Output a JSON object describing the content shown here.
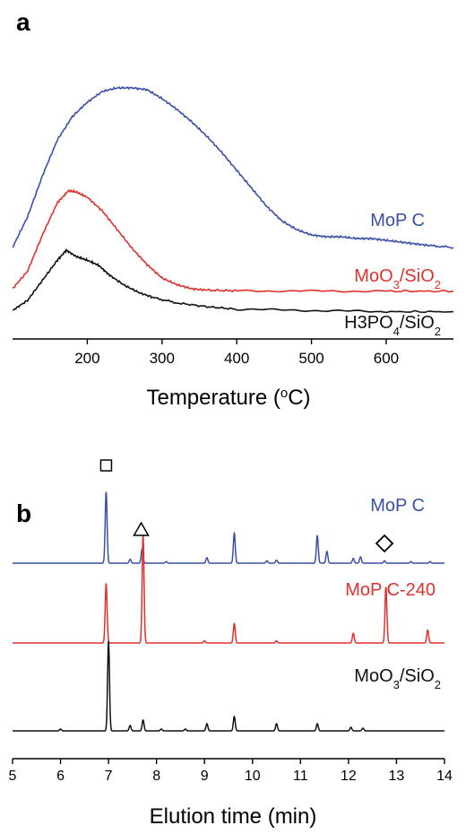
{
  "figure": {
    "panels": [
      {
        "label": "a",
        "xlabel_main": "Temperature (",
        "xlabel_sup": "o",
        "xlabel_end": "C)",
        "marker_symbols": []
      },
      {
        "label": "b",
        "xlabel_main": "Elution time (min)",
        "xlabel_sup": "",
        "xlabel_end": "",
        "marker_symbols": [
          "square",
          "triangle",
          "diamond"
        ]
      }
    ]
  },
  "chart_data": [
    {
      "type": "line",
      "title": "",
      "xlabel": "Temperature (oC)",
      "ylabel": "",
      "xlim": [
        100,
        690
      ],
      "x_ticks": [
        200,
        300,
        400,
        500,
        600
      ],
      "grid": false,
      "y_axis_shown": false,
      "stacked_offsets": true,
      "series": [
        {
          "name": "MoP C",
          "label_main": "MoP C",
          "label_sub": "",
          "label_tail": "",
          "label_sub2": "",
          "color": "#3a4fa8",
          "points": [
            [
              100,
              0.05
            ],
            [
              120,
              0.22
            ],
            [
              140,
              0.45
            ],
            [
              160,
              0.65
            ],
            [
              180,
              0.78
            ],
            [
              200,
              0.86
            ],
            [
              220,
              0.92
            ],
            [
              240,
              0.94
            ],
            [
              260,
              0.94
            ],
            [
              280,
              0.93
            ],
            [
              300,
              0.88
            ],
            [
              320,
              0.82
            ],
            [
              340,
              0.75
            ],
            [
              360,
              0.67
            ],
            [
              380,
              0.58
            ],
            [
              400,
              0.48
            ],
            [
              420,
              0.38
            ],
            [
              440,
              0.28
            ],
            [
              460,
              0.2
            ],
            [
              480,
              0.15
            ],
            [
              500,
              0.12
            ],
            [
              520,
              0.11
            ],
            [
              540,
              0.11
            ],
            [
              560,
              0.1
            ],
            [
              580,
              0.1
            ],
            [
              600,
              0.09
            ],
            [
              620,
              0.08
            ],
            [
              640,
              0.07
            ],
            [
              660,
              0.06
            ],
            [
              690,
              0.05
            ]
          ]
        },
        {
          "name": "MoO3/SiO2",
          "label_main": "MoO",
          "label_sub": "3",
          "label_tail": "/SiO",
          "label_sub2": "2",
          "color": "#e0312f",
          "points": [
            [
              100,
              0.02
            ],
            [
              120,
              0.15
            ],
            [
              140,
              0.42
            ],
            [
              160,
              0.66
            ],
            [
              175,
              0.75
            ],
            [
              185,
              0.74
            ],
            [
              200,
              0.7
            ],
            [
              220,
              0.6
            ],
            [
              240,
              0.46
            ],
            [
              260,
              0.32
            ],
            [
              280,
              0.2
            ],
            [
              300,
              0.1
            ],
            [
              320,
              0.05
            ],
            [
              340,
              0.02
            ],
            [
              360,
              0.01
            ],
            [
              400,
              0.005
            ],
            [
              500,
              0.003
            ],
            [
              600,
              0.002
            ],
            [
              690,
              0.002
            ]
          ]
        },
        {
          "name": "H3PO4/SiO2",
          "label_main": "H3PO",
          "label_sub": "4",
          "label_tail": "/SiO",
          "label_sub2": "2",
          "color": "#111111",
          "points": [
            [
              100,
              0.02
            ],
            [
              120,
              0.1
            ],
            [
              140,
              0.26
            ],
            [
              160,
              0.42
            ],
            [
              172,
              0.5
            ],
            [
              185,
              0.45
            ],
            [
              200,
              0.42
            ],
            [
              215,
              0.38
            ],
            [
              230,
              0.3
            ],
            [
              250,
              0.22
            ],
            [
              270,
              0.16
            ],
            [
              290,
              0.12
            ],
            [
              320,
              0.08
            ],
            [
              360,
              0.05
            ],
            [
              400,
              0.03
            ],
            [
              500,
              0.02
            ],
            [
              600,
              0.01
            ],
            [
              690,
              0.01
            ]
          ]
        }
      ]
    },
    {
      "type": "line",
      "title": "",
      "xlabel": "Elution time (min)",
      "ylabel": "",
      "xlim": [
        5,
        14
      ],
      "x_ticks": [
        5,
        6,
        7,
        8,
        9,
        10,
        11,
        12,
        13,
        14
      ],
      "grid": false,
      "y_axis_shown": false,
      "stacked_offsets": true,
      "series": [
        {
          "name": "MoP C",
          "label_main": "MoP C",
          "label_sub": "",
          "label_tail": "",
          "label_sub2": "",
          "color": "#3a4fa8",
          "peaks": [
            [
              6.95,
              0.9
            ],
            [
              7.45,
              0.05
            ],
            [
              7.7,
              0.18
            ],
            [
              8.2,
              0.02
            ],
            [
              9.05,
              0.07
            ],
            [
              9.62,
              0.38
            ],
            [
              10.3,
              0.03
            ],
            [
              10.5,
              0.04
            ],
            [
              11.35,
              0.35
            ],
            [
              11.55,
              0.15
            ],
            [
              12.1,
              0.06
            ],
            [
              12.25,
              0.08
            ],
            [
              12.75,
              0.03
            ],
            [
              13.3,
              0.02
            ],
            [
              13.7,
              0.02
            ]
          ]
        },
        {
          "name": "MoP C-240",
          "label_main": "MoP C-240",
          "label_sub": "",
          "label_tail": "",
          "label_sub2": "",
          "color": "#e0312f",
          "peaks": [
            [
              6.95,
              0.55
            ],
            [
              7.72,
              1.0
            ],
            [
              9.0,
              0.02
            ],
            [
              9.62,
              0.18
            ],
            [
              10.5,
              0.02
            ],
            [
              12.1,
              0.09
            ],
            [
              12.78,
              0.52
            ],
            [
              13.65,
              0.12
            ]
          ]
        },
        {
          "name": "MoO3/SiO2",
          "label_main": "MoO",
          "label_sub": "3",
          "label_tail": "/SiO",
          "label_sub2": "2",
          "color": "#111111",
          "peaks": [
            [
              6.0,
              0.02
            ],
            [
              7.0,
              1.0
            ],
            [
              7.45,
              0.06
            ],
            [
              7.72,
              0.12
            ],
            [
              8.1,
              0.02
            ],
            [
              8.6,
              0.02
            ],
            [
              9.05,
              0.08
            ],
            [
              9.62,
              0.16
            ],
            [
              10.5,
              0.08
            ],
            [
              11.35,
              0.08
            ],
            [
              12.05,
              0.04
            ],
            [
              12.3,
              0.03
            ]
          ]
        }
      ]
    }
  ]
}
